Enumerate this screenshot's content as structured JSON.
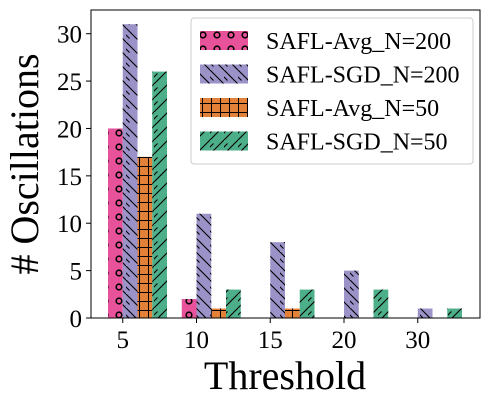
{
  "chart_data": {
    "type": "bar",
    "title": "",
    "xlabel": "Threshold",
    "ylabel": "# Oscillations",
    "categories": [
      "5",
      "10",
      "15",
      "20",
      "30"
    ],
    "x_ticks": [
      "5",
      "10",
      "15",
      "20",
      "30"
    ],
    "y_ticks": [
      "0",
      "5",
      "10",
      "15",
      "20",
      "25",
      "30"
    ],
    "ylim": [
      0,
      32.5
    ],
    "grid": false,
    "legend_position": "top-right",
    "series": [
      {
        "name": "SAFL-Avg_N=200",
        "values": [
          20,
          2,
          0,
          0,
          0
        ],
        "color": "#e7529a",
        "hatch": "circles"
      },
      {
        "name": "SAFL-SGD_N=200",
        "values": [
          31,
          11,
          8,
          5,
          1
        ],
        "color": "#9b93c8",
        "hatch": "backslash"
      },
      {
        "name": "SAFL-Avg_N=50",
        "values": [
          17,
          1,
          1,
          0,
          0
        ],
        "color": "#e48138",
        "hatch": "grid"
      },
      {
        "name": "SAFL-SGD_N=50",
        "values": [
          26,
          3,
          3,
          3,
          1
        ],
        "color": "#4daf8a",
        "hatch": "slash"
      }
    ]
  }
}
